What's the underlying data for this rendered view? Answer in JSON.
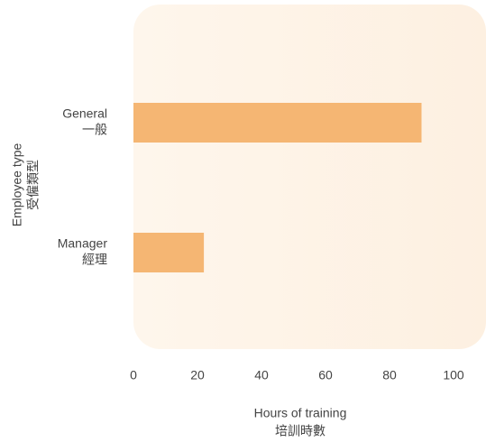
{
  "chart_data": {
    "type": "barh",
    "categories": [
      [
        "General",
        "一般"
      ],
      [
        "Manager",
        "經理"
      ]
    ],
    "values": [
      90,
      22
    ],
    "color": "#f5b673",
    "xlim": [
      0,
      100
    ],
    "xticks": [
      0,
      20,
      40,
      60,
      80,
      100
    ],
    "xlabel": [
      "Hours of training",
      "培訓時數"
    ],
    "ylabel": [
      "Employee type",
      "受僱類型"
    ]
  }
}
